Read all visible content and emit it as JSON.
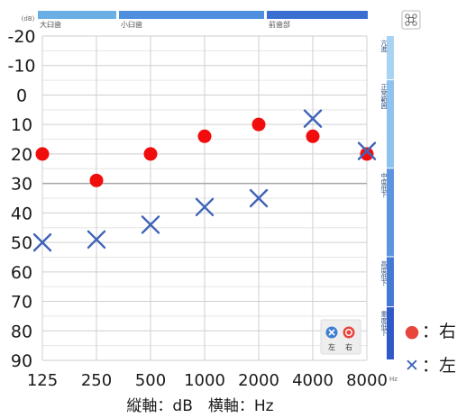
{
  "chart_data": {
    "type": "scatter",
    "x_scale": "log",
    "categories": [
      "125",
      "250",
      "500",
      "1000",
      "2000",
      "4000",
      "8000"
    ],
    "x_unit": "Hz",
    "y_unit": "(dB)",
    "y_ticks": [
      -20,
      -10,
      0,
      10,
      20,
      30,
      40,
      50,
      60,
      70,
      80,
      90
    ],
    "ylim": [
      -20,
      90
    ],
    "y_inverted": true,
    "grid": true,
    "reference_line": 30,
    "series": [
      {
        "name": "右",
        "marker": "circle",
        "color": "#f20d0d",
        "values": [
          20,
          29,
          20,
          14,
          10,
          14,
          20
        ]
      },
      {
        "name": "左",
        "marker": "x",
        "color": "#3f63b8",
        "values": [
          50,
          49,
          44,
          38,
          35,
          8,
          19
        ]
      }
    ],
    "caption": "縦軸：dB　横軸：Hz",
    "legend": [
      {
        "symbol": "●",
        "label": "：右",
        "color": "#e8453c"
      },
      {
        "symbol": "✕",
        "label": "：左",
        "color": "#3f63b8"
      }
    ],
    "top_bands": [
      {
        "label": "大臼歯",
        "color": "#6aaee6"
      },
      {
        "label": "小臼歯",
        "color": "#4d8fde"
      },
      {
        "label": "前歯部",
        "color": "#3a6fd1"
      }
    ],
    "side_bands": [
      {
        "label": "亢進",
        "color": "#a9d3f2"
      },
      {
        "label": "正常範囲",
        "color": "#8fc3ef"
      },
      {
        "label": "中度低下",
        "color": "#5b95e0"
      },
      {
        "label": "高度低下",
        "color": "#4479d6"
      },
      {
        "label": "重度低下",
        "color": "#2f58c8"
      }
    ],
    "inner_legend": {
      "left_label": "左",
      "right_label": "右"
    }
  }
}
